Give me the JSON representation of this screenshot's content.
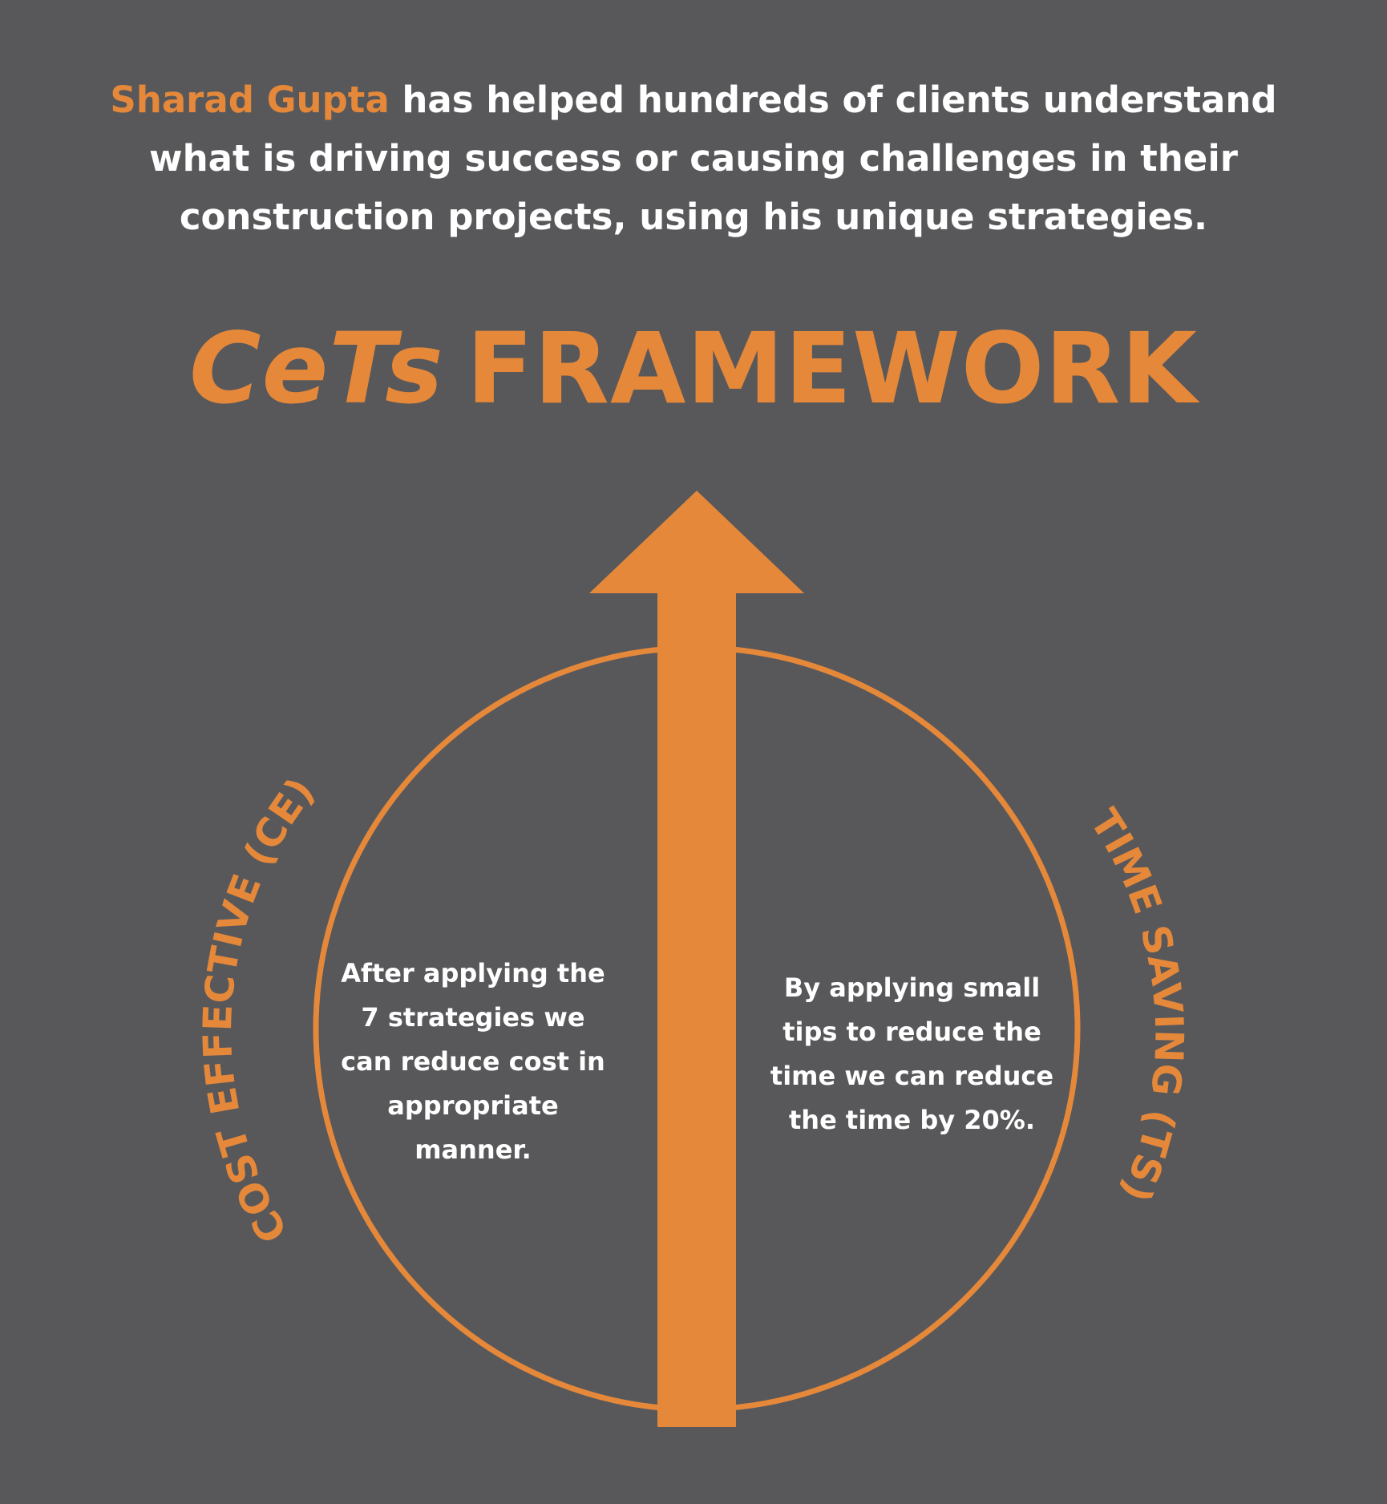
{
  "intro": {
    "highlight": "Sharad Gupta",
    "text": " has helped hundreds of clients understand what is driving success or causing challenges in their construction projects, using his unique strategies."
  },
  "title": {
    "brand": "CeTs",
    "word": "FRAMEWORK"
  },
  "cost_effective": {
    "label": "COST EFFECTIVE (CE)",
    "description": "After applying the 7 strategies we can reduce cost in appropriate manner."
  },
  "time_saving": {
    "label": "TIME SAVING (TS)",
    "description": "By applying small tips to reduce the time we can reduce the time by 20%."
  },
  "colors": {
    "background": "#58585b",
    "accent": "#e5883a",
    "text": "#ffffff"
  }
}
